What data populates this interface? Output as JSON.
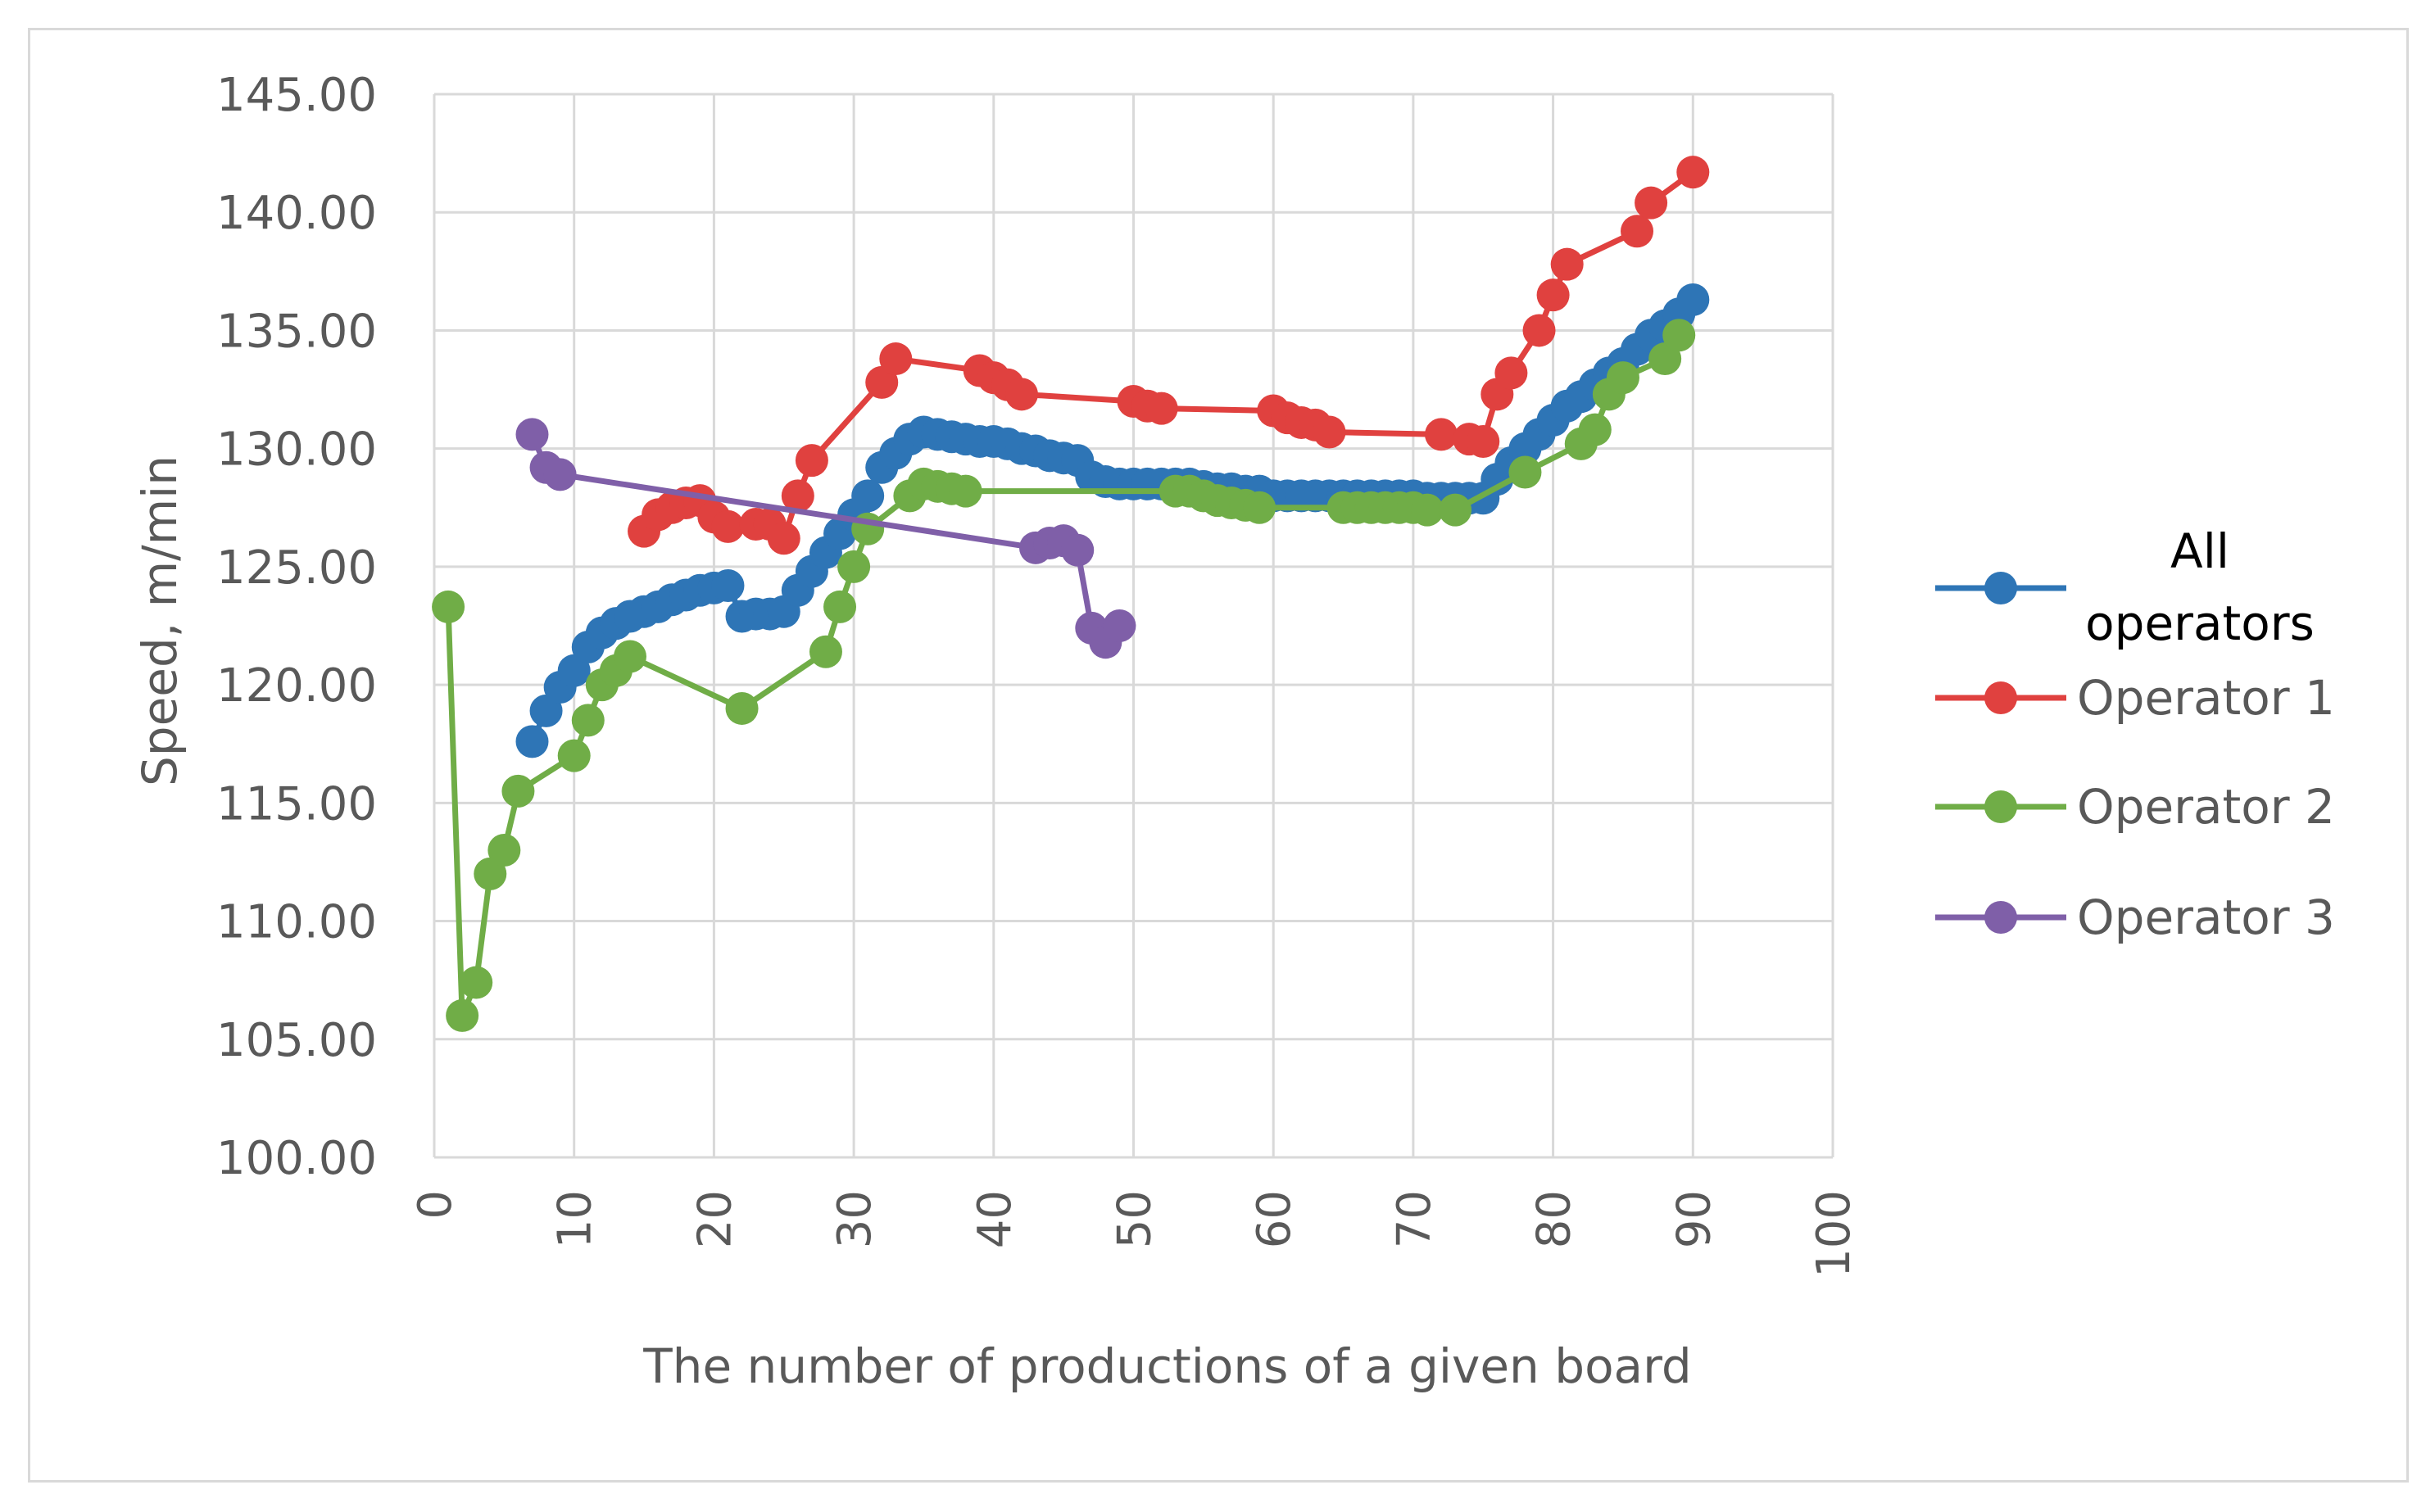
{
  "chart_data": {
    "type": "line",
    "title": "",
    "xlabel": "The number of productions of a given board",
    "ylabel": "Speed, m/min",
    "xlim": [
      0,
      100
    ],
    "ylim": [
      100,
      145
    ],
    "x_ticks": [
      "0",
      "10",
      "20",
      "30",
      "40",
      "50",
      "60",
      "70",
      "80",
      "90",
      "100"
    ],
    "y_ticks": [
      "100.00",
      "105.00",
      "110.00",
      "115.00",
      "120.00",
      "125.00",
      "130.00",
      "135.00",
      "140.00",
      "145.00"
    ],
    "grid": true,
    "legend_position": "right",
    "series": [
      {
        "name_lines": [
          "All",
          "operators"
        ],
        "color": "#2e75b6",
        "points": [
          [
            7,
            117.6
          ],
          [
            8,
            118.9
          ],
          [
            9,
            119.9
          ],
          [
            10,
            120.6
          ],
          [
            11,
            121.6
          ],
          [
            12,
            122.2
          ],
          [
            13,
            122.6
          ],
          [
            14,
            122.9
          ],
          [
            15,
            123.1
          ],
          [
            16,
            123.3
          ],
          [
            17,
            123.6
          ],
          [
            18,
            123.8
          ],
          [
            19,
            124.0
          ],
          [
            20,
            124.1
          ],
          [
            21,
            124.2
          ],
          [
            22,
            122.9
          ],
          [
            23,
            123.0
          ],
          [
            24,
            123.0
          ],
          [
            25,
            123.1
          ],
          [
            26,
            124.0
          ],
          [
            27,
            124.8
          ],
          [
            28,
            125.6
          ],
          [
            29,
            126.4
          ],
          [
            30,
            127.2
          ],
          [
            31,
            128.0
          ],
          [
            32,
            129.2
          ],
          [
            33,
            129.8
          ],
          [
            34,
            130.4
          ],
          [
            35,
            130.7
          ],
          [
            36,
            130.6
          ],
          [
            37,
            130.5
          ],
          [
            38,
            130.4
          ],
          [
            39,
            130.3
          ],
          [
            40,
            130.3
          ],
          [
            41,
            130.2
          ],
          [
            42,
            130.0
          ],
          [
            43,
            129.9
          ],
          [
            44,
            129.7
          ],
          [
            45,
            129.6
          ],
          [
            46,
            129.5
          ],
          [
            47,
            128.8
          ],
          [
            48,
            128.6
          ],
          [
            49,
            128.5
          ],
          [
            50,
            128.5
          ],
          [
            51,
            128.5
          ],
          [
            52,
            128.5
          ],
          [
            53,
            128.5
          ],
          [
            54,
            128.5
          ],
          [
            55,
            128.4
          ],
          [
            56,
            128.3
          ],
          [
            57,
            128.3
          ],
          [
            58,
            128.2
          ],
          [
            59,
            128.2
          ],
          [
            60,
            128.0
          ],
          [
            61,
            128.0
          ],
          [
            62,
            128.0
          ],
          [
            63,
            128.0
          ],
          [
            64,
            128.0
          ],
          [
            65,
            128.0
          ],
          [
            66,
            128.0
          ],
          [
            67,
            128.0
          ],
          [
            68,
            128.0
          ],
          [
            69,
            128.0
          ],
          [
            70,
            128.0
          ],
          [
            71,
            127.9
          ],
          [
            72,
            127.9
          ],
          [
            73,
            127.9
          ],
          [
            74,
            127.9
          ],
          [
            75,
            127.9
          ],
          [
            76,
            128.7
          ],
          [
            77,
            129.4
          ],
          [
            78,
            130.0
          ],
          [
            79,
            130.6
          ],
          [
            80,
            131.2
          ],
          [
            81,
            131.8
          ],
          [
            82,
            132.2
          ],
          [
            83,
            132.7
          ],
          [
            84,
            133.2
          ],
          [
            85,
            133.6
          ],
          [
            86,
            134.2
          ],
          [
            87,
            134.8
          ],
          [
            88,
            135.2
          ],
          [
            89,
            135.7
          ],
          [
            90,
            136.3
          ]
        ]
      },
      {
        "name": "Operator 1",
        "color": "#e0413f",
        "points": [
          [
            15,
            126.5
          ],
          [
            16,
            127.2
          ],
          [
            17,
            127.5
          ],
          [
            18,
            127.7
          ],
          [
            19,
            127.8
          ],
          [
            20,
            127.1
          ],
          [
            21,
            126.7
          ],
          [
            23,
            126.8
          ],
          [
            24,
            126.8
          ],
          [
            25,
            126.2
          ],
          [
            26,
            128.0
          ],
          [
            27,
            129.5
          ],
          [
            32,
            132.8
          ],
          [
            33,
            133.8
          ],
          [
            39,
            133.3
          ],
          [
            40,
            133.0
          ],
          [
            41,
            132.7
          ],
          [
            42,
            132.3
          ],
          [
            50,
            132.0
          ],
          [
            51,
            131.8
          ],
          [
            52,
            131.7
          ],
          [
            60,
            131.6
          ],
          [
            61,
            131.3
          ],
          [
            62,
            131.1
          ],
          [
            63,
            131.0
          ],
          [
            64,
            130.7
          ],
          [
            72,
            130.6
          ],
          [
            74,
            130.4
          ],
          [
            75,
            130.3
          ],
          [
            76,
            132.3
          ],
          [
            77,
            133.2
          ],
          [
            79,
            135.0
          ],
          [
            80,
            136.5
          ],
          [
            81,
            137.8
          ],
          [
            86,
            139.2
          ],
          [
            87,
            140.4
          ],
          [
            90,
            141.7
          ]
        ]
      },
      {
        "name": "Operator 2",
        "color": "#70ad47",
        "points": [
          [
            1,
            123.3
          ],
          [
            2,
            106.0
          ],
          [
            3,
            107.4
          ],
          [
            4,
            112.0
          ],
          [
            5,
            113.0
          ],
          [
            6,
            115.5
          ],
          [
            10,
            117.0
          ],
          [
            11,
            118.5
          ],
          [
            12,
            120.0
          ],
          [
            13,
            120.6
          ],
          [
            14,
            121.2
          ],
          [
            22,
            119.0
          ],
          [
            28,
            121.4
          ],
          [
            29,
            123.3
          ],
          [
            30,
            125.0
          ],
          [
            31,
            126.6
          ],
          [
            34,
            128.0
          ],
          [
            35,
            128.5
          ],
          [
            36,
            128.4
          ],
          [
            37,
            128.3
          ],
          [
            38,
            128.2
          ],
          [
            53,
            128.2
          ],
          [
            54,
            128.2
          ],
          [
            55,
            128.0
          ],
          [
            56,
            127.8
          ],
          [
            57,
            127.7
          ],
          [
            58,
            127.6
          ],
          [
            59,
            127.5
          ],
          [
            65,
            127.5
          ],
          [
            66,
            127.5
          ],
          [
            67,
            127.5
          ],
          [
            68,
            127.5
          ],
          [
            69,
            127.5
          ],
          [
            70,
            127.5
          ],
          [
            71,
            127.4
          ],
          [
            73,
            127.4
          ],
          [
            78,
            129.0
          ],
          [
            82,
            130.2
          ],
          [
            83,
            130.8
          ],
          [
            84,
            132.3
          ],
          [
            85,
            133.0
          ],
          [
            88,
            133.8
          ],
          [
            89,
            134.8
          ]
        ]
      },
      {
        "name": "Operator 3",
        "color": "#7f5fa8",
        "points": [
          [
            7,
            130.6
          ],
          [
            8,
            129.2
          ],
          [
            9,
            128.9
          ],
          [
            43,
            125.8
          ],
          [
            44,
            126.0
          ],
          [
            45,
            126.1
          ],
          [
            46,
            125.7
          ],
          [
            47,
            122.4
          ],
          [
            48,
            121.8
          ],
          [
            49,
            122.5
          ]
        ]
      }
    ]
  }
}
